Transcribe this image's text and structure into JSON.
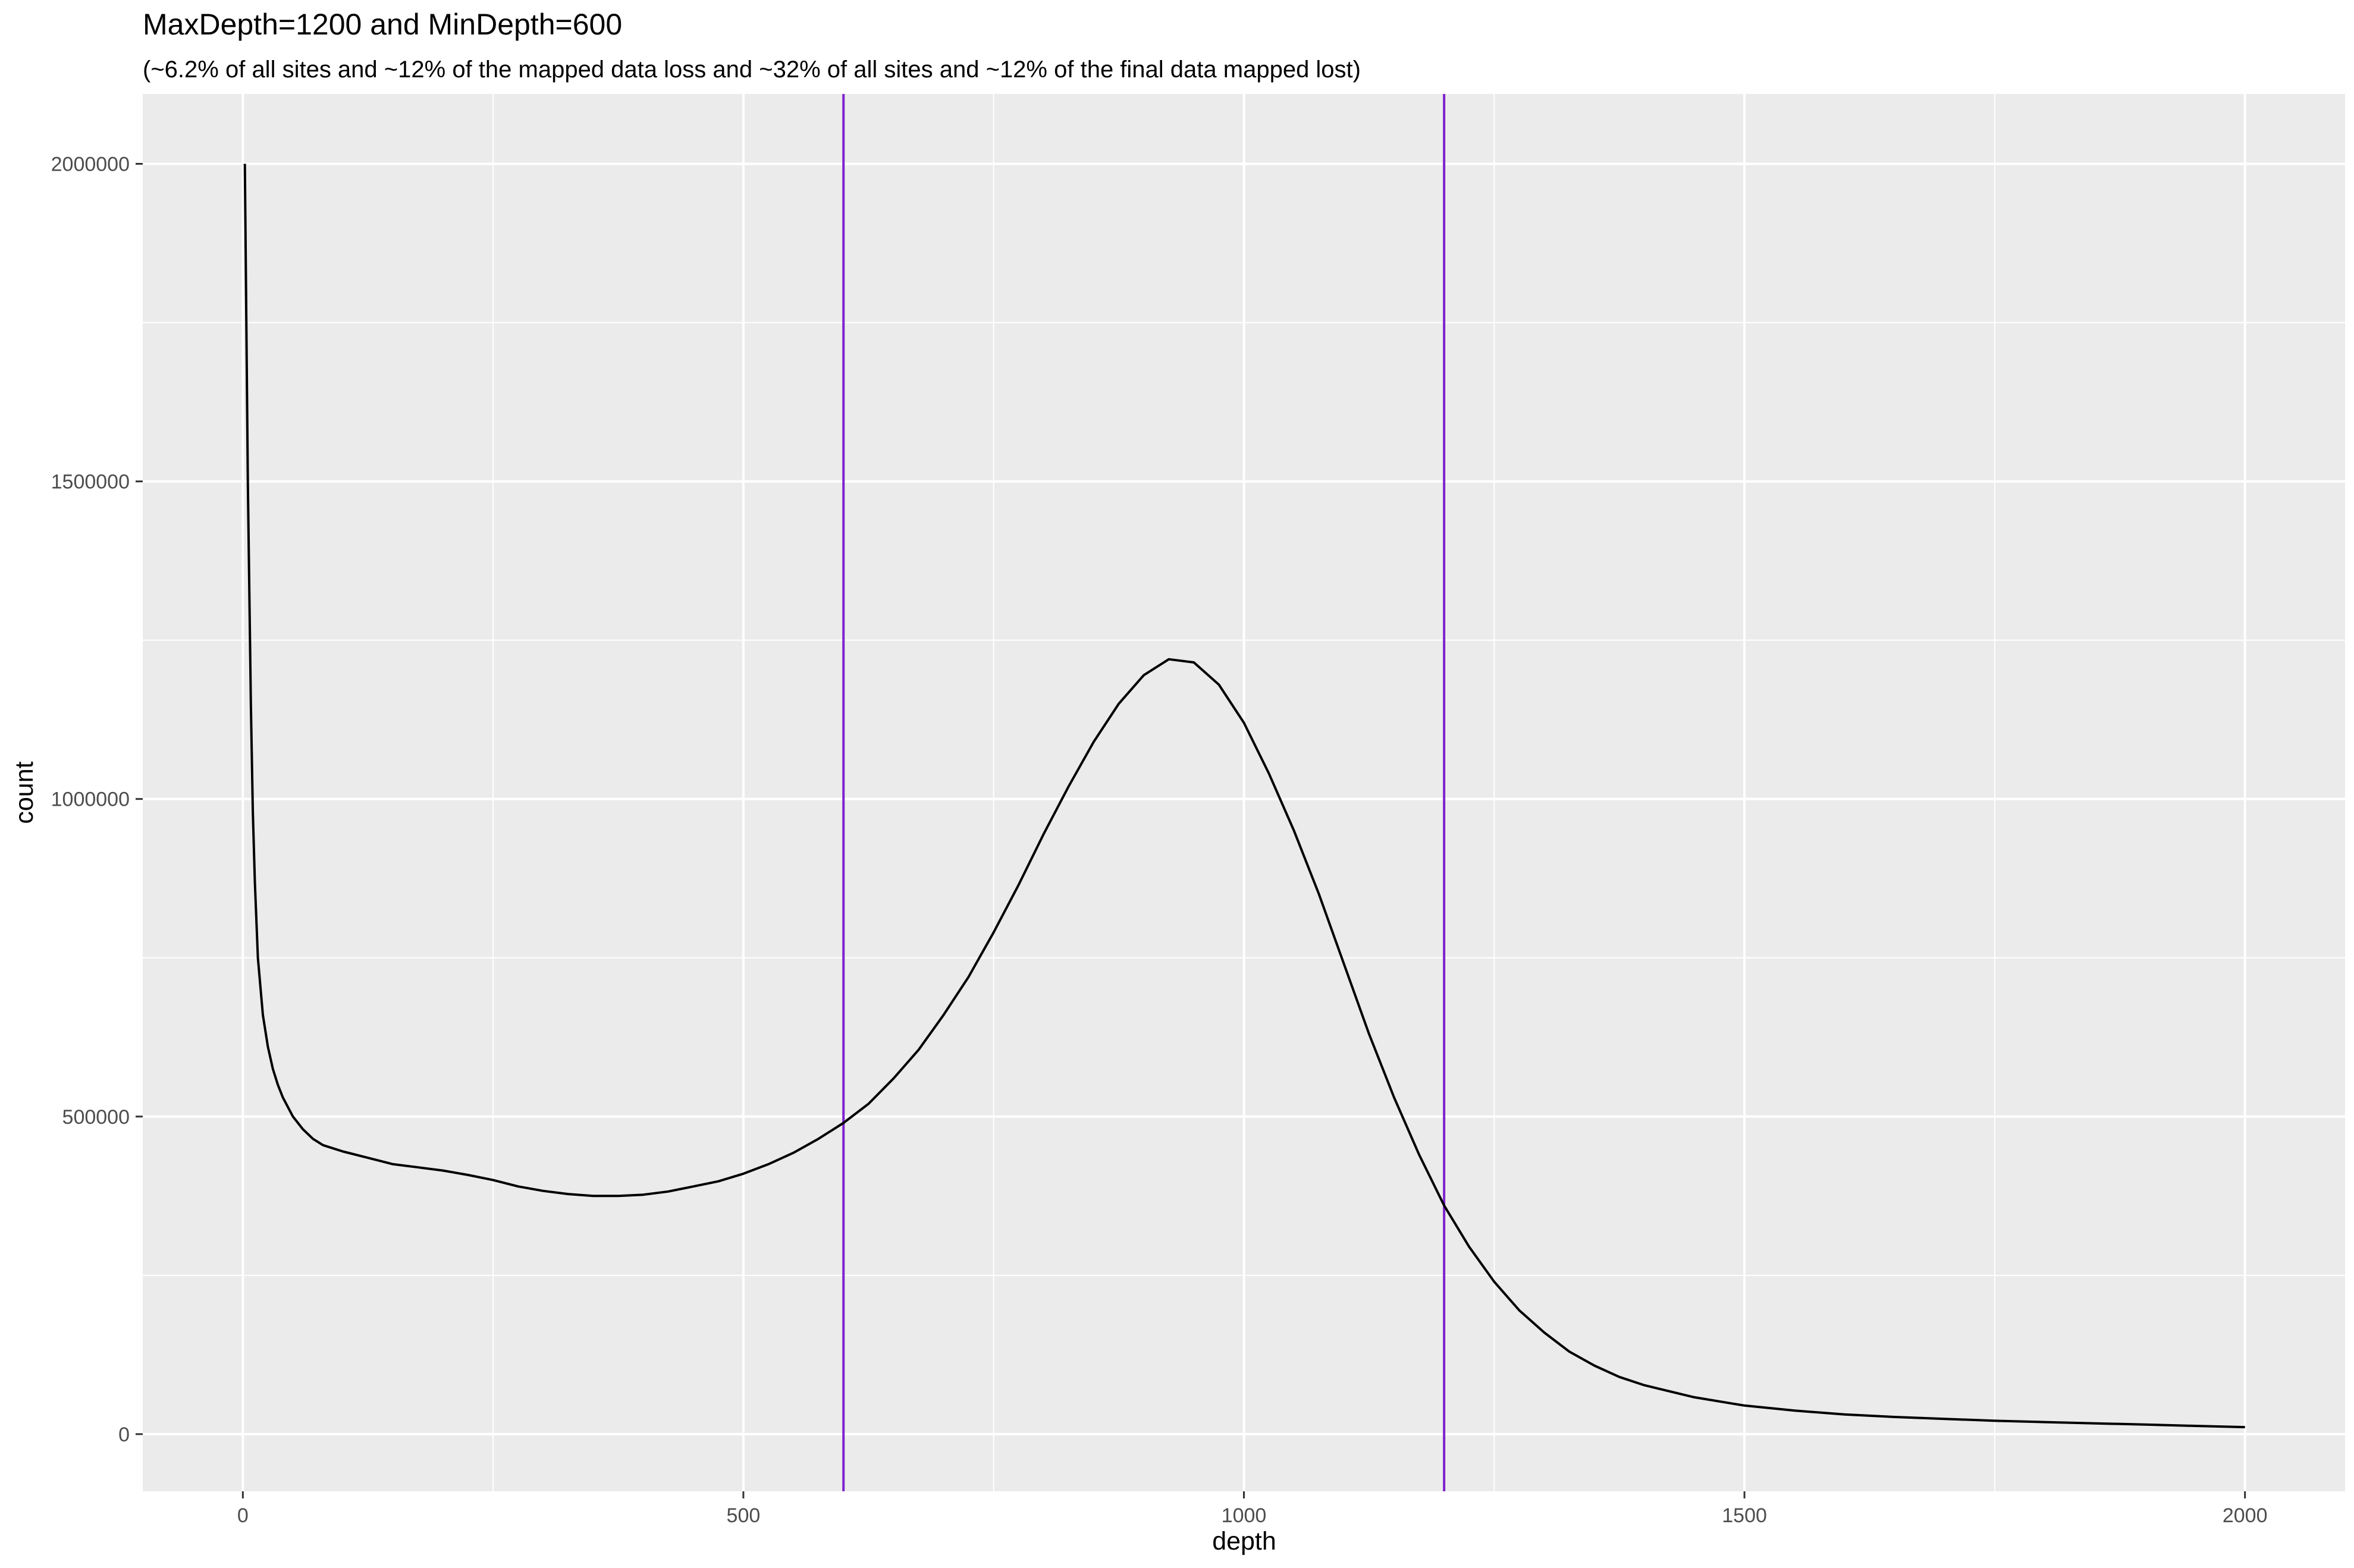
{
  "chart_data": {
    "type": "line",
    "title": "MaxDepth=1200 and MinDepth=600",
    "subtitle": "(~6.2% of all sites and ~12% of the mapped data loss and ~32% of all sites and ~12% of the final data mapped lost)",
    "xlabel": "depth",
    "ylabel": "count",
    "xlim": [
      -100,
      2100
    ],
    "ylim": [
      -90000,
      2110000
    ],
    "x_ticks": [
      0,
      500,
      1000,
      1500,
      2000
    ],
    "x_tick_labels": [
      "0",
      "500",
      "1000",
      "1500",
      "2000"
    ],
    "y_ticks": [
      0,
      500000,
      1000000,
      1500000,
      2000000
    ],
    "y_tick_labels": [
      "0",
      "500000",
      "1000000",
      "1500000",
      "2000000"
    ],
    "grid": true,
    "background": "#ebebeb",
    "series": [
      {
        "color": "#000000",
        "x": [
          2,
          5,
          8,
          10,
          12,
          15,
          20,
          25,
          30,
          35,
          40,
          50,
          60,
          70,
          80,
          90,
          100,
          125,
          150,
          175,
          200,
          225,
          250,
          275,
          300,
          325,
          350,
          375,
          400,
          425,
          450,
          475,
          500,
          525,
          550,
          575,
          600,
          625,
          650,
          675,
          700,
          725,
          750,
          775,
          800,
          825,
          850,
          875,
          900,
          925,
          950,
          975,
          1000,
          1025,
          1050,
          1075,
          1100,
          1125,
          1150,
          1175,
          1200,
          1225,
          1250,
          1275,
          1300,
          1325,
          1350,
          1375,
          1400,
          1450,
          1500,
          1550,
          1600,
          1650,
          1700,
          1750,
          1800,
          1850,
          1900,
          1950,
          2000
        ],
        "y": [
          2000000,
          1500000,
          1150000,
          980000,
          870000,
          750000,
          660000,
          610000,
          575000,
          550000,
          530000,
          500000,
          480000,
          465000,
          455000,
          450000,
          445000,
          435000,
          425000,
          420000,
          415000,
          408000,
          400000,
          390000,
          383000,
          378000,
          375000,
          375000,
          377000,
          382000,
          390000,
          398000,
          410000,
          425000,
          443000,
          465000,
          490000,
          520000,
          560000,
          605000,
          660000,
          720000,
          790000,
          865000,
          945000,
          1020000,
          1090000,
          1150000,
          1195000,
          1220000,
          1215000,
          1180000,
          1120000,
          1040000,
          950000,
          850000,
          740000,
          630000,
          530000,
          440000,
          360000,
          295000,
          240000,
          195000,
          160000,
          130000,
          108000,
          90000,
          77000,
          58000,
          45000,
          37000,
          31000,
          27000,
          24000,
          21000,
          19000,
          17000,
          15000,
          13000,
          11000
        ]
      }
    ],
    "vlines": [
      {
        "x": 600,
        "color": "#7e22ce"
      },
      {
        "x": 1200,
        "color": "#7e22ce"
      }
    ]
  }
}
